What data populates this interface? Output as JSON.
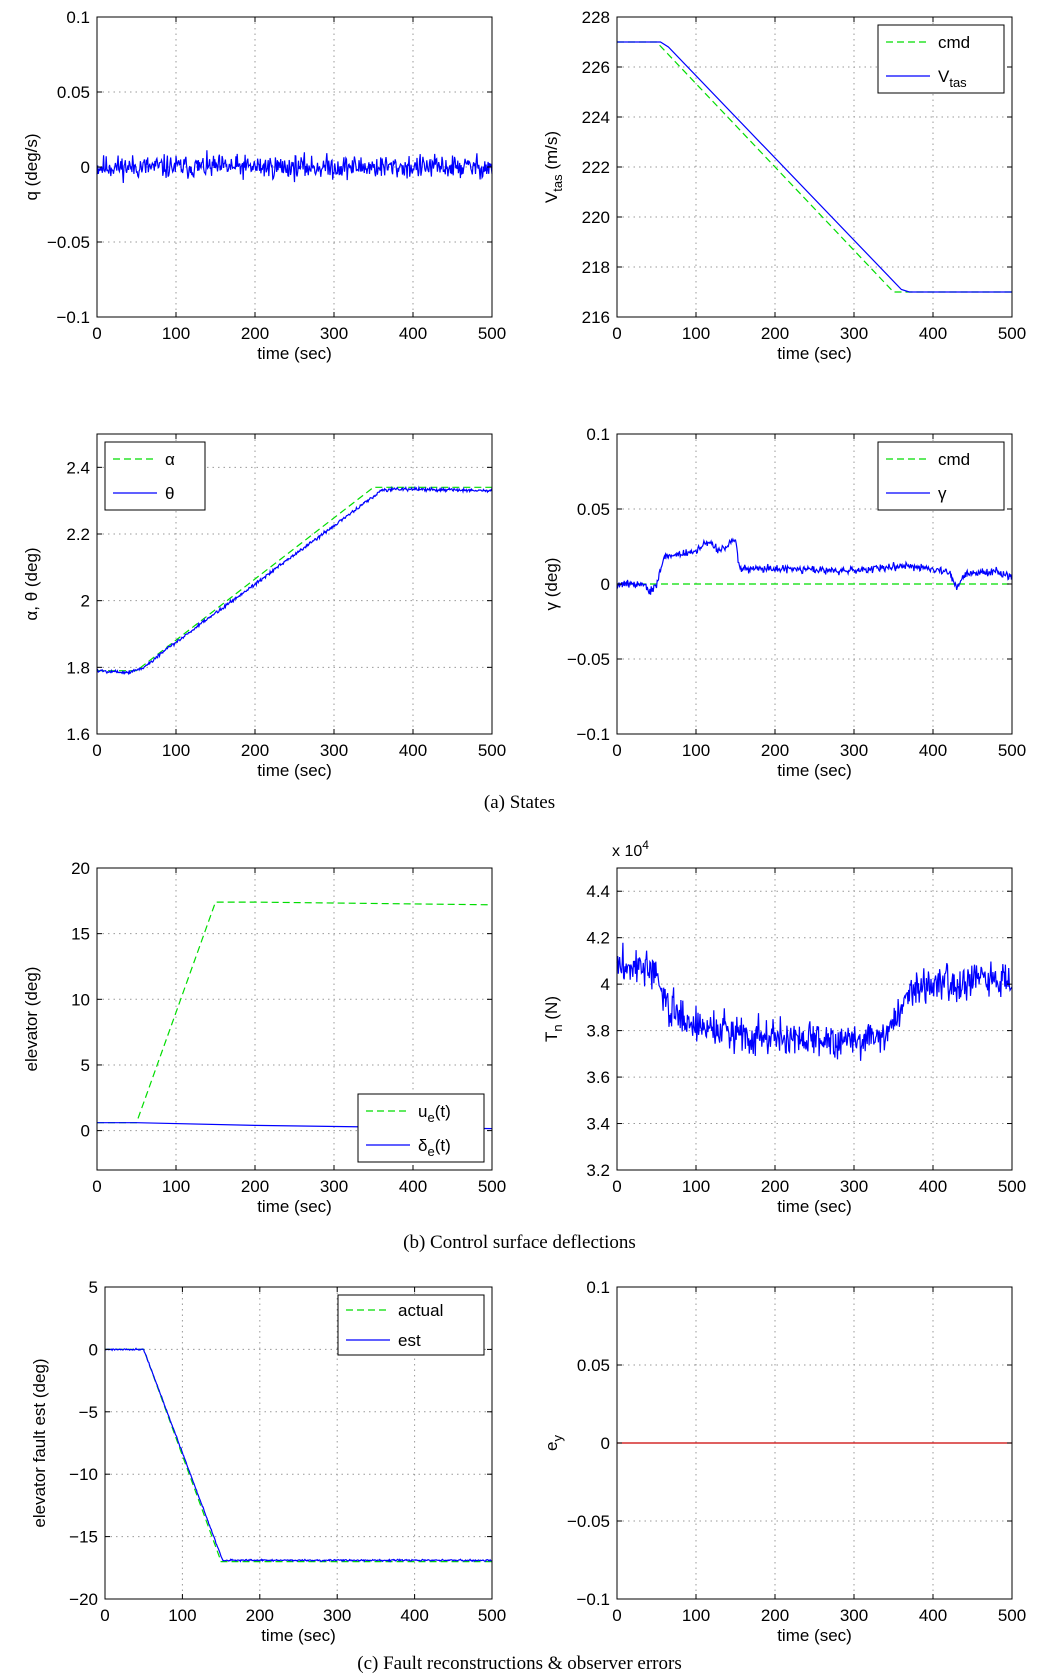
{
  "captions": {
    "a": "(a)  States",
    "b": "(b)  Control surface deflections",
    "c": "(c)  Fault reconstructions & observer errors"
  },
  "colors": {
    "green": "#00dd00",
    "blue": "#0000ff",
    "red": "#cc0000",
    "grid": "#999999"
  },
  "chart_data": [
    {
      "id": "q",
      "type": "line",
      "xlabel": "time (sec)",
      "ylabel": "q (deg/s)",
      "xlim": [
        0,
        500
      ],
      "ylim": [
        -0.1,
        0.1
      ],
      "xticks": [
        0,
        100,
        200,
        300,
        400,
        500
      ],
      "xtick_labels": [
        "0",
        "100",
        "200",
        "300",
        "400",
        "500"
      ],
      "yticks": [
        -0.1,
        -0.05,
        0,
        0.05,
        0.1
      ],
      "ytick_labels": [
        "−0.1",
        "−0.05",
        "0",
        "0.05",
        "0.1"
      ],
      "grid": true,
      "series": [
        {
          "color": "blue",
          "style": "solid",
          "noise": {
            "base": 0,
            "amp": 0.006,
            "seed": 11
          }
        }
      ]
    },
    {
      "id": "vtas",
      "type": "line",
      "xlabel": "time (sec)",
      "ylabel": "V",
      "ylabel_sub": "tas",
      "ylabel_suffix": " (m/s)",
      "xlim": [
        0,
        500
      ],
      "ylim": [
        216,
        228
      ],
      "xticks": [
        0,
        100,
        200,
        300,
        400,
        500
      ],
      "xtick_labels": [
        "0",
        "100",
        "200",
        "300",
        "400",
        "500"
      ],
      "yticks": [
        216,
        218,
        220,
        222,
        224,
        226,
        228
      ],
      "ytick_labels": [
        "216",
        "218",
        "220",
        "222",
        "224",
        "226",
        "228"
      ],
      "grid": true,
      "legend_position": "top-right",
      "series": [
        {
          "name": "cmd",
          "color": "green",
          "style": "dashed",
          "points": [
            [
              0,
              227
            ],
            [
              50,
              227
            ],
            [
              350,
              217
            ],
            [
              500,
              217
            ]
          ]
        },
        {
          "name": "V",
          "name_sub": "tas",
          "color": "blue",
          "style": "solid",
          "points": [
            [
              0,
              227
            ],
            [
              55,
              227
            ],
            [
              65,
              226.8
            ],
            [
              360,
              217.1
            ],
            [
              370,
              217
            ],
            [
              500,
              217
            ]
          ]
        }
      ]
    },
    {
      "id": "alpha",
      "type": "line",
      "xlabel": "time (sec)",
      "ylabel": "α, θ (deg)",
      "xlim": [
        0,
        500
      ],
      "ylim": [
        1.6,
        2.5
      ],
      "xticks": [
        0,
        100,
        200,
        300,
        400,
        500
      ],
      "xtick_labels": [
        "0",
        "100",
        "200",
        "300",
        "400",
        "500"
      ],
      "yticks": [
        1.6,
        1.8,
        2,
        2.2,
        2.4
      ],
      "ytick_labels": [
        "1.6",
        "1.8",
        "2",
        "2.2",
        "2.4"
      ],
      "grid": true,
      "legend_position": "top-left",
      "series": [
        {
          "name": "α",
          "color": "green",
          "style": "dashed",
          "points": [
            [
              0,
              1.79
            ],
            [
              50,
              1.79
            ],
            [
              350,
              2.34
            ],
            [
              500,
              2.34
            ]
          ]
        },
        {
          "name": "θ",
          "color": "blue",
          "style": "solid",
          "points": [
            [
              0,
              1.79
            ],
            [
              40,
              1.785
            ],
            [
              60,
              1.8
            ],
            [
              80,
              1.84
            ],
            [
              360,
              2.33
            ],
            [
              375,
              2.335
            ],
            [
              500,
              2.33
            ]
          ],
          "noise": {
            "amp": 0.004,
            "seed": 5
          }
        }
      ]
    },
    {
      "id": "gamma",
      "type": "line",
      "xlabel": "time (sec)",
      "ylabel": "γ (deg)",
      "xlim": [
        0,
        500
      ],
      "ylim": [
        -0.1,
        0.1
      ],
      "xticks": [
        0,
        100,
        200,
        300,
        400,
        500
      ],
      "xtick_labels": [
        "0",
        "100",
        "200",
        "300",
        "400",
        "500"
      ],
      "yticks": [
        -0.1,
        -0.05,
        0,
        0.05,
        0.1
      ],
      "ytick_labels": [
        "−0.1",
        "−0.05",
        "0",
        "0.05",
        "0.1"
      ],
      "grid": true,
      "legend_position": "top-right",
      "series": [
        {
          "name": "cmd",
          "color": "green",
          "style": "dashed",
          "points": [
            [
              0,
              0
            ],
            [
              500,
              0
            ]
          ]
        },
        {
          "name": "γ",
          "color": "blue",
          "style": "solid",
          "points": [
            [
              0,
              0
            ],
            [
              35,
              0
            ],
            [
              42,
              -0.005
            ],
            [
              50,
              0
            ],
            [
              55,
              0.01
            ],
            [
              60,
              0.018
            ],
            [
              80,
              0.02
            ],
            [
              100,
              0.022
            ],
            [
              115,
              0.028
            ],
            [
              130,
              0.022
            ],
            [
              145,
              0.028
            ],
            [
              150,
              0.03
            ],
            [
              155,
              0.01
            ],
            [
              200,
              0.01
            ],
            [
              300,
              0.009
            ],
            [
              370,
              0.012
            ],
            [
              420,
              0.008
            ],
            [
              430,
              -0.002
            ],
            [
              440,
              0.007
            ],
            [
              480,
              0.008
            ],
            [
              500,
              0.004
            ]
          ],
          "noise": {
            "amp": 0.002,
            "seed": 9
          }
        }
      ]
    },
    {
      "id": "elevator",
      "type": "line",
      "xlabel": "time (sec)",
      "ylabel": "elevator (deg)",
      "xlim": [
        0,
        500
      ],
      "ylim": [
        -3,
        20
      ],
      "xticks": [
        0,
        100,
        200,
        300,
        400,
        500
      ],
      "xtick_labels": [
        "0",
        "100",
        "200",
        "300",
        "400",
        "500"
      ],
      "yticks": [
        0,
        5,
        10,
        15,
        20
      ],
      "ytick_labels": [
        "0",
        "5",
        "10",
        "15",
        "20"
      ],
      "grid": true,
      "legend_position": "bottom-right",
      "series": [
        {
          "name": "u",
          "name_sub": "e",
          "name_suffix": "(t)",
          "color": "green",
          "style": "dashed",
          "points": [
            [
              0,
              0.6
            ],
            [
              50,
              0.6
            ],
            [
              150,
              17.4
            ],
            [
              200,
              17.4
            ],
            [
              500,
              17.2
            ]
          ]
        },
        {
          "name": "δ",
          "name_sub": "e",
          "name_suffix": "(t)",
          "color": "blue",
          "style": "solid",
          "points": [
            [
              0,
              0.6
            ],
            [
              50,
              0.6
            ],
            [
              200,
              0.4
            ],
            [
              500,
              0.15
            ]
          ]
        }
      ]
    },
    {
      "id": "thrust",
      "type": "line",
      "xlabel": "time (sec)",
      "ylabel": "T",
      "ylabel_sub": "n",
      "ylabel_suffix": " (N)",
      "exponent_label": "x 10",
      "exponent": "4",
      "xlim": [
        0,
        500
      ],
      "ylim": [
        3.2,
        4.5
      ],
      "xticks": [
        0,
        100,
        200,
        300,
        400,
        500
      ],
      "xtick_labels": [
        "0",
        "100",
        "200",
        "300",
        "400",
        "500"
      ],
      "yticks": [
        3.2,
        3.4,
        3.6,
        3.8,
        4,
        4.2,
        4.4
      ],
      "ytick_labels": [
        "3.2",
        "3.4",
        "3.6",
        "3.8",
        "4",
        "4.2",
        "4.4"
      ],
      "grid": true,
      "series": [
        {
          "color": "blue",
          "style": "solid",
          "points": [
            [
              0,
              4.08
            ],
            [
              40,
              4.07
            ],
            [
              50,
              4.02
            ],
            [
              65,
              3.9
            ],
            [
              100,
              3.82
            ],
            [
              200,
              3.77
            ],
            [
              300,
              3.76
            ],
            [
              340,
              3.78
            ],
            [
              350,
              3.85
            ],
            [
              380,
              4.0
            ],
            [
              500,
              4.02
            ]
          ],
          "noise": {
            "amp": 0.06,
            "seed": 3
          }
        }
      ]
    },
    {
      "id": "fault",
      "type": "line",
      "xlabel": "time (sec)",
      "ylabel": "elevator fault est (deg)",
      "xlim": [
        0,
        500
      ],
      "ylim": [
        -20,
        5
      ],
      "xticks": [
        0,
        100,
        200,
        300,
        400,
        500
      ],
      "xtick_labels": [
        "0",
        "100",
        "200",
        "300",
        "400",
        "500"
      ],
      "yticks": [
        -20,
        -15,
        -10,
        -5,
        0,
        5
      ],
      "ytick_labels": [
        "−20",
        "−15",
        "−10",
        "−5",
        "0",
        "5"
      ],
      "grid": true,
      "legend_position": "top-right",
      "series": [
        {
          "name": "actual",
          "color": "green",
          "style": "dashed",
          "points": [
            [
              0,
              0
            ],
            [
              50,
              0
            ],
            [
              150,
              -17
            ],
            [
              500,
              -17
            ]
          ]
        },
        {
          "name": "est",
          "color": "blue",
          "style": "solid",
          "points": [
            [
              0,
              0
            ],
            [
              50,
              0
            ],
            [
              152,
              -16.9
            ],
            [
              500,
              -16.9
            ]
          ],
          "noise": {
            "amp": 0.05,
            "seed": 21
          }
        }
      ]
    },
    {
      "id": "ey",
      "type": "line",
      "xlabel": "time (sec)",
      "ylabel": "e",
      "ylabel_sub": "y",
      "xlim": [
        0,
        500
      ],
      "ylim": [
        -0.1,
        0.1
      ],
      "xticks": [
        0,
        100,
        200,
        300,
        400,
        500
      ],
      "xtick_labels": [
        "0",
        "100",
        "200",
        "300",
        "400",
        "500"
      ],
      "yticks": [
        -0.1,
        -0.05,
        0,
        0.05,
        0.1
      ],
      "ytick_labels": [
        "−0.1",
        "−0.05",
        "0",
        "0.05",
        "0.1"
      ],
      "grid": true,
      "series": [
        {
          "color": "red",
          "style": "solid",
          "points": [
            [
              0,
              0
            ],
            [
              500,
              0
            ]
          ]
        }
      ]
    }
  ]
}
